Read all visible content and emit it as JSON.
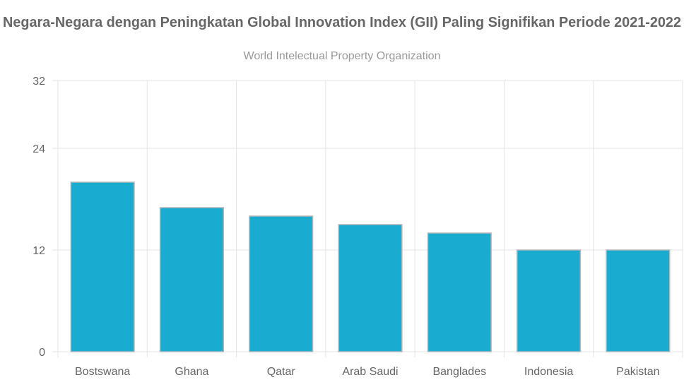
{
  "chart_data": {
    "type": "bar",
    "title": "Negara-Negara dengan Peningkatan Global Innovation Index (GII) Paling Signifikan Periode 2021-2022",
    "subtitle": "World Intelectual Property Organization",
    "xlabel": "",
    "ylabel": "",
    "categories": [
      "Bostswana",
      "Ghana",
      "Qatar",
      "Arab Saudi",
      "Banglades",
      "Indonesia",
      "Pakistan"
    ],
    "values": [
      20,
      17,
      16,
      15,
      14,
      12,
      12
    ],
    "ylim": [
      0,
      32
    ],
    "yticks": [
      0,
      12,
      24,
      32
    ],
    "grid": true,
    "legend": "none",
    "colors": {
      "bar": "#1aabd0",
      "bar_border": "#b0b8bc",
      "grid": "#e4e4e4",
      "text": "#666666",
      "subtitle": "#999999"
    }
  }
}
